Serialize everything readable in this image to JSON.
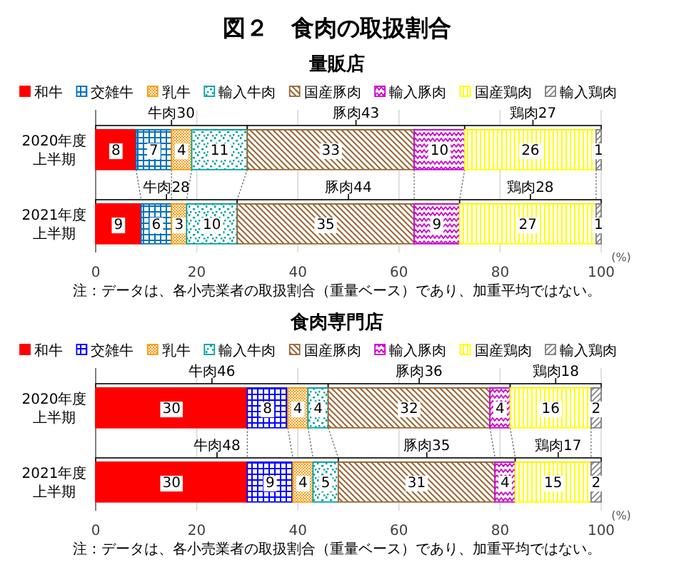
{
  "chart_data": [
    {
      "type": "bar",
      "orientation": "horizontal",
      "stacked": true,
      "title": "図２　食肉の取扱割合",
      "subtitle": "量販店",
      "categories": [
        null,
        "2020年度上半期",
        null,
        "2021年度上半期"
      ],
      "series": [
        {
          "name": "和牛",
          "color": "#ff0000",
          "values": [
            null,
            8,
            null,
            9
          ],
          "value_labels": [
            null,
            "8",
            null,
            "9"
          ]
        },
        {
          "name": "交雑牛",
          "color": "#0070c0",
          "values": [
            null,
            7,
            null,
            6
          ],
          "value_labels": [
            null,
            "7",
            null,
            "6"
          ]
        },
        {
          "name": "乳牛",
          "color": "#ff9900",
          "values": [
            null,
            4,
            null,
            3
          ],
          "value_labels": [
            null,
            "4",
            null,
            "3"
          ]
        },
        {
          "name": "輸入牛肉",
          "color": "#00a0a0",
          "values": [
            null,
            11,
            null,
            10
          ],
          "value_labels": [
            null,
            "11",
            null,
            "10"
          ]
        },
        {
          "name": "国産豚肉",
          "color": "#996633",
          "values": [
            null,
            33,
            null,
            35
          ],
          "value_labels": [
            null,
            "33",
            null,
            "35"
          ]
        },
        {
          "name": "輸入豚肉",
          "color": "#cc00cc",
          "values": [
            null,
            10,
            null,
            9
          ],
          "value_labels": [
            null,
            "10",
            null,
            "9"
          ]
        },
        {
          "name": "国産鶏肉",
          "color": "#ffff00",
          "values": [
            null,
            26,
            null,
            27
          ],
          "value_labels": [
            null,
            "26",
            null,
            "27"
          ]
        },
        {
          "name": "輸入鶏肉",
          "color": "#808080",
          "values": [
            null,
            1,
            null,
            1
          ],
          "value_labels": [
            null,
            "1",
            null,
            "1"
          ]
        },
        {
          "color": "#ffffff",
          "values": [
            30,
            null,
            28,
            null
          ],
          "value_labels": [
            "牛肉30",
            null,
            "牛肉28",
            null
          ]
        },
        {
          "color": "#ffffff",
          "values": [
            43,
            null,
            44,
            null
          ],
          "value_labels": [
            "豚肉43",
            null,
            "豚肉44",
            null
          ]
        },
        {
          "color": "#ffffff",
          "values": [
            27,
            null,
            28,
            null
          ],
          "value_labels": [
            "鶏肉27",
            null,
            "鶏肉28",
            null
          ]
        }
      ],
      "xlim": [
        0,
        100
      ],
      "xticks": [
        0,
        20,
        40,
        60,
        80,
        100
      ],
      "xlabel": "(%)",
      "grid": "x",
      "legend": "top",
      "annotations": [
        "注：データは、各小売業者の取扱割合（重量ベース）であり、加重平均ではない。"
      ]
    },
    {
      "type": "bar",
      "orientation": "horizontal",
      "stacked": true,
      "subtitle": "食肉専門店",
      "categories": [
        null,
        "2020年度上半期",
        null,
        "2021年度上半期"
      ],
      "series": [
        {
          "name": "和牛",
          "color": "#ff0000",
          "values": [
            null,
            30,
            null,
            30
          ],
          "value_labels": [
            null,
            "30",
            null,
            "30"
          ]
        },
        {
          "name": "交雑牛",
          "color": "#0000ff",
          "values": [
            null,
            8,
            null,
            9
          ],
          "value_labels": [
            null,
            "8",
            null,
            "9"
          ]
        },
        {
          "name": "乳牛",
          "color": "#ff9900",
          "values": [
            null,
            4,
            null,
            4
          ],
          "value_labels": [
            null,
            "4",
            null,
            "4"
          ]
        },
        {
          "name": "輸入牛肉",
          "color": "#00a0a0",
          "values": [
            null,
            4,
            null,
            5
          ],
          "value_labels": [
            null,
            "4",
            null,
            "5"
          ]
        },
        {
          "name": "国産豚肉",
          "color": "#996633",
          "values": [
            null,
            32,
            null,
            31
          ],
          "value_labels": [
            null,
            "32",
            null,
            "31"
          ]
        },
        {
          "name": "輸入豚肉",
          "color": "#cc00cc",
          "values": [
            null,
            4,
            null,
            4
          ],
          "value_labels": [
            null,
            "4",
            null,
            "4"
          ]
        },
        {
          "name": "国産鶏肉",
          "color": "#ffff00",
          "values": [
            null,
            16,
            null,
            15
          ],
          "value_labels": [
            null,
            "16",
            null,
            "15"
          ]
        },
        {
          "name": "輸入鶏肉",
          "color": "#808080",
          "values": [
            null,
            2,
            null,
            2
          ],
          "value_labels": [
            null,
            "2",
            null,
            "2"
          ]
        },
        {
          "color": "#ffffff",
          "values": [
            46,
            null,
            48,
            null
          ],
          "value_labels": [
            "牛肉46",
            null,
            "牛肉48",
            null
          ]
        },
        {
          "color": "#ffffff",
          "values": [
            36,
            null,
            35,
            null
          ],
          "value_labels": [
            "豚肉36",
            null,
            "豚肉35",
            null
          ]
        },
        {
          "color": "#ffffff",
          "values": [
            18,
            null,
            17,
            null
          ],
          "value_labels": [
            "鶏肉18",
            null,
            "鶏肉17",
            null
          ]
        }
      ],
      "xlim": [
        0,
        100
      ],
      "xticks": [
        0,
        20,
        40,
        60,
        80,
        100
      ],
      "xlabel": "(%)",
      "grid": "x",
      "legend": "top",
      "annotations": [
        "注：データは、各小売業者の取扱割合（重量ベース）であり、加重平均ではない。"
      ]
    }
  ]
}
